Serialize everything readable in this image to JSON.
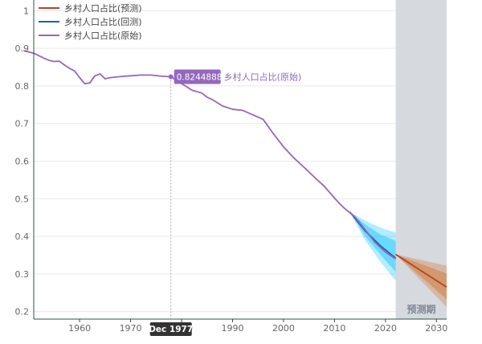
{
  "chart_data": {
    "type": "line",
    "ylim": [
      0.18,
      1.02
    ],
    "xlim": [
      1951.0,
      2032.0
    ],
    "y_ticks": [
      "0.2",
      "0.3",
      "0.4",
      "0.5",
      "0.6",
      "0.7",
      "0.8",
      "0.9",
      "1"
    ],
    "x_ticks": [
      "1960",
      "1970",
      "1980",
      "1990",
      "2000",
      "2010",
      "2020",
      "2030"
    ],
    "grid": true,
    "legend_position": "top-left",
    "forecast_region": {
      "start": 2022.0,
      "end": 2032.0,
      "label": "预测期"
    },
    "series": [
      {
        "name": "乡村人口占比(预测)",
        "color": "#b5432a",
        "band_color": "#d2691e",
        "x": [
          2022,
          2032
        ],
        "values": [
          0.352,
          0.265
        ],
        "upper80": [
          0.352,
          0.301
        ],
        "lower80": [
          0.352,
          0.233
        ],
        "upper95": [
          0.352,
          0.322
        ],
        "lower95": [
          0.352,
          0.212
        ]
      },
      {
        "name": "乡村人口占比(回测)",
        "color": "#1f5fa6",
        "band_color": "#00bfff",
        "x": [
          2013,
          2016,
          2019,
          2022
        ],
        "values": [
          0.465,
          0.415,
          0.375,
          0.342
        ],
        "upper80": [
          0.465,
          0.432,
          0.405,
          0.388
        ],
        "lower80": [
          0.465,
          0.4,
          0.352,
          0.305
        ],
        "upper95": [
          0.465,
          0.442,
          0.423,
          0.41
        ],
        "lower95": [
          0.465,
          0.39,
          0.332,
          0.282
        ]
      },
      {
        "name": "乡村人口占比(原始)",
        "color": "#9467bd",
        "x": [
          1949,
          1951,
          1953,
          1954,
          1955,
          1956,
          1957,
          1958,
          1959,
          1960,
          1961,
          1962,
          1963,
          1964,
          1965,
          1966,
          1968,
          1970,
          1972,
          1974,
          1976,
          1977.9,
          1980,
          1981,
          1982,
          1984,
          1985,
          1986,
          1988,
          1990,
          1992,
          1994,
          1996,
          1998,
          2000,
          2002,
          2004,
          2006,
          2008,
          2010,
          2011,
          2012,
          2014,
          2016,
          2018,
          2020,
          2022
        ],
        "values": [
          0.894,
          0.887,
          0.874,
          0.868,
          0.865,
          0.866,
          0.856,
          0.847,
          0.84,
          0.822,
          0.806,
          0.808,
          0.827,
          0.832,
          0.819,
          0.822,
          0.825,
          0.827,
          0.829,
          0.829,
          0.826,
          0.8244888,
          0.806,
          0.798,
          0.789,
          0.781,
          0.77,
          0.764,
          0.747,
          0.738,
          0.735,
          0.723,
          0.711,
          0.673,
          0.638,
          0.609,
          0.584,
          0.558,
          0.533,
          0.502,
          0.487,
          0.474,
          0.452,
          0.418,
          0.383,
          0.358,
          0.34
        ]
      }
    ],
    "hover": {
      "series_name": "乡村人口占比(原始)",
      "x_label": "Dec 1977",
      "x": 1977.9,
      "y": 0.8244888,
      "value_text": "0.8244888"
    }
  }
}
